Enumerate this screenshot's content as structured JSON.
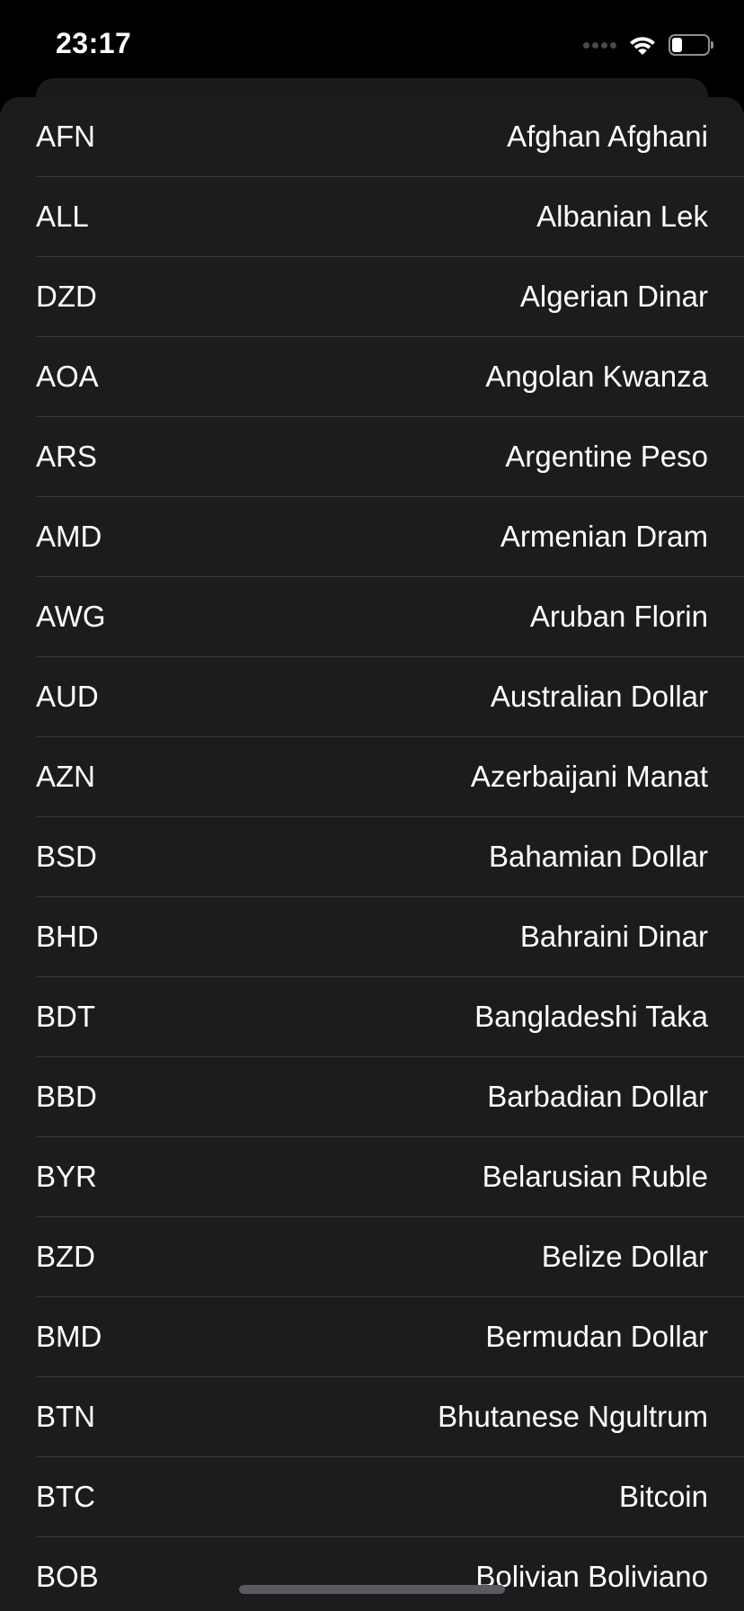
{
  "status_bar": {
    "time": "23:17",
    "icons": [
      "cellular-signal-icon",
      "wifi-icon",
      "battery-icon"
    ],
    "battery_level": 0.3
  },
  "currencies": [
    {
      "code": "AFN",
      "name": "Afghan Afghani"
    },
    {
      "code": "ALL",
      "name": "Albanian Lek"
    },
    {
      "code": "DZD",
      "name": "Algerian Dinar"
    },
    {
      "code": "AOA",
      "name": "Angolan Kwanza"
    },
    {
      "code": "ARS",
      "name": "Argentine Peso"
    },
    {
      "code": "AMD",
      "name": "Armenian Dram"
    },
    {
      "code": "AWG",
      "name": "Aruban Florin"
    },
    {
      "code": "AUD",
      "name": "Australian Dollar"
    },
    {
      "code": "AZN",
      "name": "Azerbaijani Manat"
    },
    {
      "code": "BSD",
      "name": "Bahamian Dollar"
    },
    {
      "code": "BHD",
      "name": "Bahraini Dinar"
    },
    {
      "code": "BDT",
      "name": "Bangladeshi Taka"
    },
    {
      "code": "BBD",
      "name": "Barbadian Dollar"
    },
    {
      "code": "BYR",
      "name": "Belarusian Ruble"
    },
    {
      "code": "BZD",
      "name": "Belize Dollar"
    },
    {
      "code": "BMD",
      "name": "Bermudan Dollar"
    },
    {
      "code": "BTN",
      "name": "Bhutanese Ngultrum"
    },
    {
      "code": "BTC",
      "name": "Bitcoin"
    },
    {
      "code": "BOB",
      "name": "Bolivian Boliviano"
    }
  ],
  "colors": {
    "background": "#000000",
    "sheet": "#1c1c1e",
    "separator": "#38383a",
    "text": "#ffffff"
  }
}
